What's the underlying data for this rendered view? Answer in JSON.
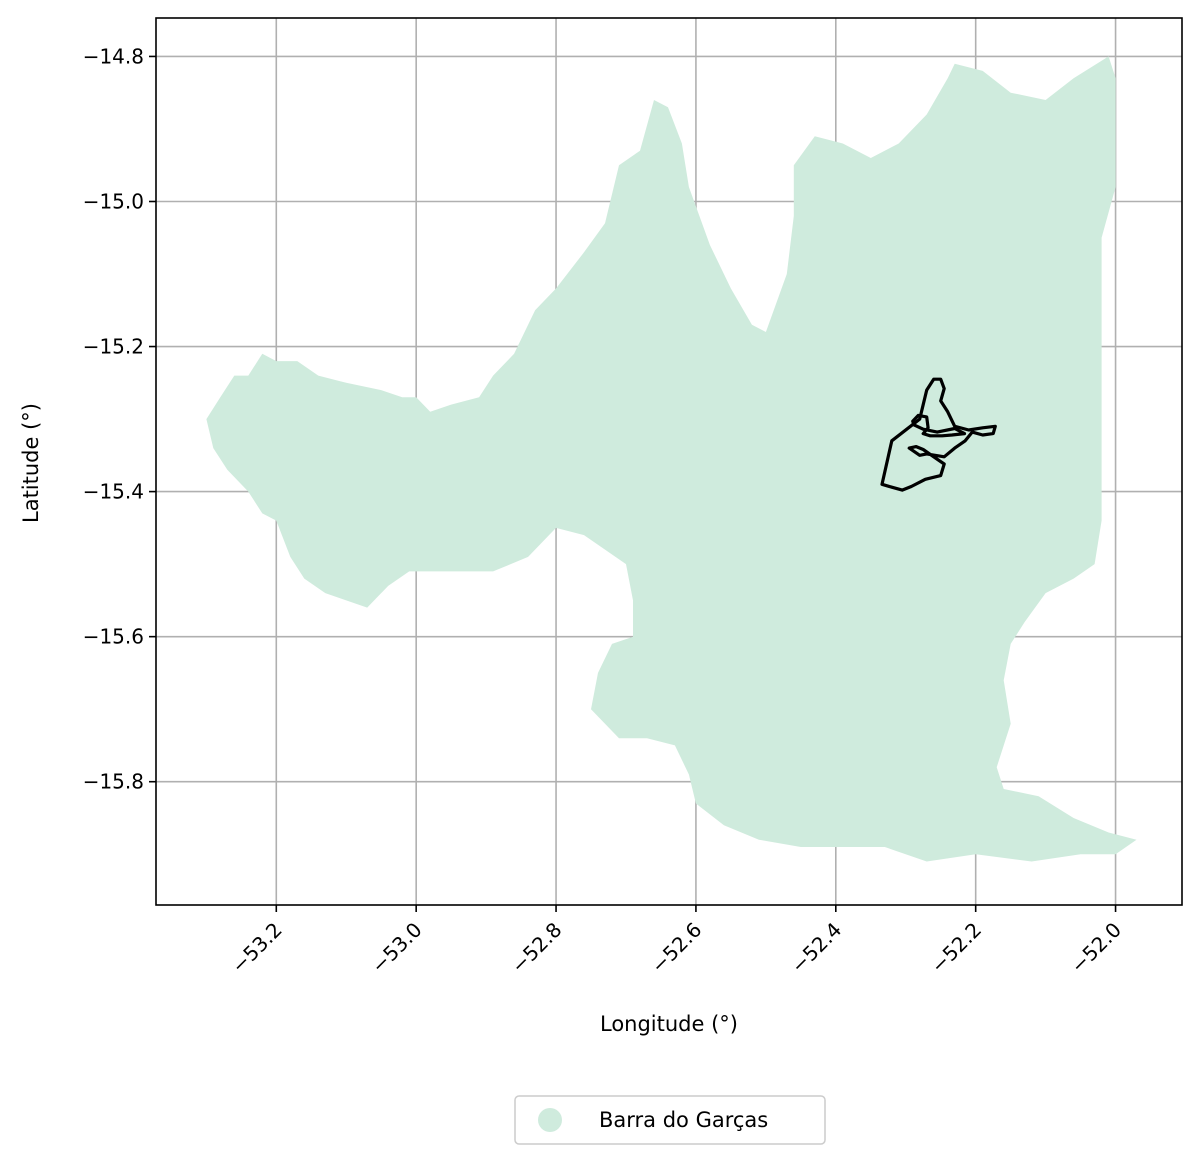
{
  "chart_data": {
    "type": "map",
    "xlabel": "Longitude (°)",
    "ylabel": "Latitude (°)",
    "xlim": [
      -53.372,
      -51.905
    ],
    "ylim": [
      -15.97,
      -14.747
    ],
    "x_ticks": [
      -53.2,
      -53.0,
      -52.8,
      -52.6,
      -52.4,
      -52.2,
      -52.0
    ],
    "x_tick_labels": [
      "−53.2",
      "−53.0",
      "−52.8",
      "−52.6",
      "−52.4",
      "−52.2",
      "−52.0"
    ],
    "y_ticks": [
      -14.8,
      -15.0,
      -15.2,
      -15.4,
      -15.6,
      -15.8
    ],
    "y_tick_labels": [
      "−14.8",
      "−15.0",
      "−15.2",
      "−15.4",
      "−15.6",
      "−15.8"
    ],
    "grid": true,
    "legend_position": "bottom-center",
    "fill_color": "#cfebdd",
    "outline_color": "#000000",
    "legend": [
      {
        "label": "Barra do Garças",
        "color": "#cfebdd"
      }
    ],
    "region": {
      "name": "Barra do Garças",
      "boundary": [
        [
          -53.3,
          -15.3
        ],
        [
          -53.28,
          -15.27
        ],
        [
          -53.26,
          -15.24
        ],
        [
          -53.24,
          -15.24
        ],
        [
          -53.22,
          -15.21
        ],
        [
          -53.2,
          -15.22
        ],
        [
          -53.17,
          -15.22
        ],
        [
          -53.14,
          -15.24
        ],
        [
          -53.1,
          -15.25
        ],
        [
          -53.05,
          -15.26
        ],
        [
          -53.02,
          -15.27
        ],
        [
          -53.0,
          -15.27
        ],
        [
          -52.98,
          -15.29
        ],
        [
          -52.95,
          -15.28
        ],
        [
          -52.91,
          -15.27
        ],
        [
          -52.89,
          -15.24
        ],
        [
          -52.86,
          -15.21
        ],
        [
          -52.83,
          -15.15
        ],
        [
          -52.8,
          -15.12
        ],
        [
          -52.76,
          -15.07
        ],
        [
          -52.73,
          -15.03
        ],
        [
          -52.71,
          -14.95
        ],
        [
          -52.68,
          -14.93
        ],
        [
          -52.66,
          -14.86
        ],
        [
          -52.64,
          -14.87
        ],
        [
          -52.62,
          -14.92
        ],
        [
          -52.61,
          -14.98
        ],
        [
          -52.58,
          -15.06
        ],
        [
          -52.55,
          -15.12
        ],
        [
          -52.52,
          -15.17
        ],
        [
          -52.5,
          -15.18
        ],
        [
          -52.47,
          -15.1
        ],
        [
          -52.46,
          -15.02
        ],
        [
          -52.46,
          -14.95
        ],
        [
          -52.43,
          -14.91
        ],
        [
          -52.39,
          -14.92
        ],
        [
          -52.35,
          -14.94
        ],
        [
          -52.31,
          -14.92
        ],
        [
          -52.27,
          -14.88
        ],
        [
          -52.24,
          -14.83
        ],
        [
          -52.23,
          -14.81
        ],
        [
          -52.19,
          -14.82
        ],
        [
          -52.15,
          -14.85
        ],
        [
          -52.1,
          -14.86
        ],
        [
          -52.06,
          -14.83
        ],
        [
          -52.01,
          -14.8
        ],
        [
          -52.0,
          -14.83
        ],
        [
          -52.0,
          -14.9
        ],
        [
          -52.0,
          -14.98
        ],
        [
          -52.02,
          -15.05
        ],
        [
          -52.02,
          -15.12
        ],
        [
          -52.02,
          -15.2
        ],
        [
          -52.02,
          -15.28
        ],
        [
          -52.02,
          -15.36
        ],
        [
          -52.02,
          -15.44
        ],
        [
          -52.03,
          -15.5
        ],
        [
          -52.06,
          -15.52
        ],
        [
          -52.1,
          -15.54
        ],
        [
          -52.13,
          -15.58
        ],
        [
          -52.15,
          -15.61
        ],
        [
          -52.16,
          -15.66
        ],
        [
          -52.15,
          -15.72
        ],
        [
          -52.17,
          -15.78
        ],
        [
          -52.16,
          -15.81
        ],
        [
          -52.11,
          -15.82
        ],
        [
          -52.06,
          -15.85
        ],
        [
          -52.01,
          -15.87
        ],
        [
          -51.97,
          -15.88
        ],
        [
          -52.0,
          -15.9
        ],
        [
          -52.05,
          -15.9
        ],
        [
          -52.12,
          -15.91
        ],
        [
          -52.2,
          -15.9
        ],
        [
          -52.27,
          -15.91
        ],
        [
          -52.33,
          -15.89
        ],
        [
          -52.39,
          -15.89
        ],
        [
          -52.45,
          -15.89
        ],
        [
          -52.51,
          -15.88
        ],
        [
          -52.56,
          -15.86
        ],
        [
          -52.6,
          -15.83
        ],
        [
          -52.61,
          -15.79
        ],
        [
          -52.63,
          -15.75
        ],
        [
          -52.67,
          -15.74
        ],
        [
          -52.71,
          -15.74
        ],
        [
          -52.75,
          -15.7
        ],
        [
          -52.74,
          -15.65
        ],
        [
          -52.72,
          -15.61
        ],
        [
          -52.69,
          -15.6
        ],
        [
          -52.69,
          -15.55
        ],
        [
          -52.7,
          -15.5
        ],
        [
          -52.73,
          -15.48
        ],
        [
          -52.76,
          -15.46
        ],
        [
          -52.8,
          -15.45
        ],
        [
          -52.84,
          -15.49
        ],
        [
          -52.89,
          -15.51
        ],
        [
          -52.95,
          -15.51
        ],
        [
          -53.01,
          -15.51
        ],
        [
          -53.04,
          -15.53
        ],
        [
          -53.07,
          -15.56
        ],
        [
          -53.1,
          -15.55
        ],
        [
          -53.13,
          -15.54
        ],
        [
          -53.16,
          -15.52
        ],
        [
          -53.18,
          -15.49
        ],
        [
          -53.2,
          -15.44
        ],
        [
          -53.22,
          -15.43
        ],
        [
          -53.24,
          -15.4
        ],
        [
          -53.27,
          -15.37
        ],
        [
          -53.29,
          -15.34
        ],
        [
          -53.3,
          -15.3
        ]
      ]
    },
    "highlight_area": {
      "boundary": [
        [
          -52.334,
          -15.39
        ],
        [
          -52.32,
          -15.33
        ],
        [
          -52.28,
          -15.3
        ],
        [
          -52.27,
          -15.26
        ],
        [
          -52.26,
          -15.245
        ],
        [
          -52.25,
          -15.245
        ],
        [
          -52.245,
          -15.258
        ],
        [
          -52.25,
          -15.275
        ],
        [
          -52.24,
          -15.29
        ],
        [
          -52.23,
          -15.31
        ],
        [
          -52.21,
          -15.315
        ],
        [
          -52.19,
          -15.312
        ],
        [
          -52.172,
          -15.31
        ],
        [
          -52.175,
          -15.32
        ],
        [
          -52.19,
          -15.322
        ],
        [
          -52.205,
          -15.318
        ],
        [
          -52.215,
          -15.33
        ],
        [
          -52.23,
          -15.34
        ],
        [
          -52.245,
          -15.352
        ],
        [
          -52.27,
          -15.348
        ],
        [
          -52.28,
          -15.35
        ],
        [
          -52.295,
          -15.34
        ],
        [
          -52.285,
          -15.338
        ],
        [
          -52.275,
          -15.342
        ],
        [
          -52.26,
          -15.352
        ],
        [
          -52.245,
          -15.362
        ],
        [
          -52.25,
          -15.378
        ],
        [
          -52.272,
          -15.383
        ],
        [
          -52.292,
          -15.393
        ],
        [
          -52.305,
          -15.398
        ],
        [
          -52.32,
          -15.394
        ],
        [
          -52.334,
          -15.39
        ]
      ],
      "inner_boundary": [
        [
          -52.29,
          -15.303
        ],
        [
          -52.282,
          -15.295
        ],
        [
          -52.27,
          -15.297
        ],
        [
          -52.268,
          -15.312
        ],
        [
          -52.275,
          -15.32
        ],
        [
          -52.265,
          -15.323
        ],
        [
          -52.248,
          -15.323
        ],
        [
          -52.234,
          -15.322
        ],
        [
          -52.216,
          -15.32
        ],
        [
          -52.23,
          -15.313
        ],
        [
          -52.255,
          -15.318
        ],
        [
          -52.275,
          -15.314
        ],
        [
          -52.288,
          -15.308
        ],
        [
          -52.29,
          -15.303
        ]
      ]
    }
  }
}
